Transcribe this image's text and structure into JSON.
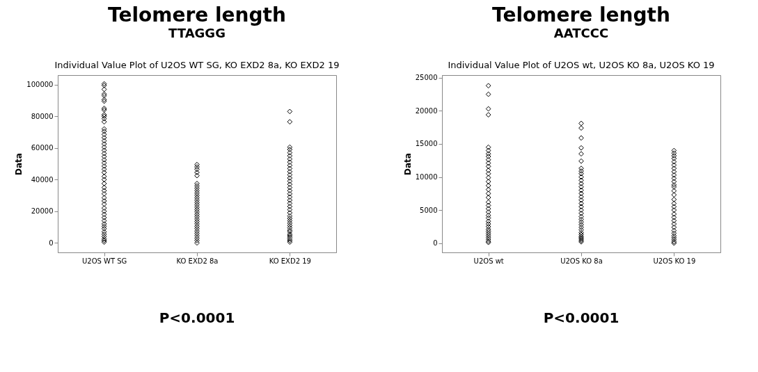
{
  "chart_data": [
    {
      "type": "scatter",
      "title": "Telomere length",
      "subtitle": "TTAGGG",
      "ylabel": "Data",
      "marker": "diamond",
      "grid": false,
      "annotations": [
        "Individual Value Plot of U2OS WT SG, KO EXD2 8a, KO EXD2 19",
        "P<0.0001"
      ],
      "categories": [
        "U2OS WT SG",
        "KO EXD2 8a",
        "KO EXD2 19"
      ],
      "ylim": [
        -6000,
        106000
      ],
      "yticks": [
        0,
        20000,
        40000,
        60000,
        80000,
        100000
      ],
      "series": [
        {
          "color": "#000000",
          "x": [
            "U2OS WT SG",
            "U2OS WT SG",
            "U2OS WT SG",
            "U2OS WT SG",
            "U2OS WT SG",
            "U2OS WT SG",
            "U2OS WT SG",
            "U2OS WT SG",
            "U2OS WT SG",
            "U2OS WT SG",
            "U2OS WT SG",
            "U2OS WT SG",
            "U2OS WT SG",
            "U2OS WT SG",
            "U2OS WT SG",
            "U2OS WT SG",
            "U2OS WT SG",
            "U2OS WT SG",
            "U2OS WT SG",
            "U2OS WT SG",
            "U2OS WT SG",
            "U2OS WT SG",
            "U2OS WT SG",
            "U2OS WT SG",
            "U2OS WT SG",
            "U2OS WT SG",
            "U2OS WT SG",
            "U2OS WT SG",
            "U2OS WT SG",
            "U2OS WT SG",
            "U2OS WT SG",
            "U2OS WT SG",
            "U2OS WT SG",
            "U2OS WT SG",
            "U2OS WT SG",
            "U2OS WT SG",
            "U2OS WT SG",
            "U2OS WT SG",
            "U2OS WT SG",
            "U2OS WT SG",
            "U2OS WT SG",
            "U2OS WT SG",
            "U2OS WT SG",
            "U2OS WT SG",
            "U2OS WT SG",
            "U2OS WT SG",
            "U2OS WT SG",
            "U2OS WT SG",
            "U2OS WT SG",
            "U2OS WT SG",
            "U2OS WT SG"
          ],
          "values": [
            500,
            1500,
            2500,
            4000,
            5500,
            7000,
            9000,
            10500,
            12000,
            14000,
            16000,
            18000,
            20000,
            22000,
            24500,
            26500,
            28500,
            31000,
            33000,
            35000,
            37500,
            40000,
            42000,
            44500,
            46500,
            48500,
            50500,
            52500,
            54500,
            56500,
            58500,
            60500,
            62500,
            64500,
            66500,
            68500,
            70500,
            72000,
            76500,
            78500,
            80000,
            81000,
            84000,
            85000,
            89500,
            90500,
            93000,
            94000,
            97000,
            99500,
            100500
          ]
        },
        {
          "color": "#000000",
          "x": [
            "KO EXD2 8a",
            "KO EXD2 8a",
            "KO EXD2 8a",
            "KO EXD2 8a",
            "KO EXD2 8a",
            "KO EXD2 8a",
            "KO EXD2 8a",
            "KO EXD2 8a",
            "KO EXD2 8a",
            "KO EXD2 8a",
            "KO EXD2 8a",
            "KO EXD2 8a",
            "KO EXD2 8a",
            "KO EXD2 8a",
            "KO EXD2 8a",
            "KO EXD2 8a",
            "KO EXD2 8a",
            "KO EXD2 8a",
            "KO EXD2 8a",
            "KO EXD2 8a",
            "KO EXD2 8a",
            "KO EXD2 8a",
            "KO EXD2 8a",
            "KO EXD2 8a",
            "KO EXD2 8a",
            "KO EXD2 8a",
            "KO EXD2 8a",
            "KO EXD2 8a",
            "KO EXD2 8a",
            "KO EXD2 8a",
            "KO EXD2 8a"
          ],
          "values": [
            0,
            1500,
            3000,
            4500,
            6000,
            7500,
            9000,
            10500,
            12000,
            13500,
            15000,
            16500,
            18000,
            19500,
            21000,
            22500,
            24000,
            25500,
            27000,
            28500,
            30000,
            31500,
            33000,
            34500,
            36000,
            37500,
            42500,
            44500,
            46500,
            48000,
            49500
          ]
        },
        {
          "color": "#000000",
          "x": [
            "KO EXD2 19",
            "KO EXD2 19",
            "KO EXD2 19",
            "KO EXD2 19",
            "KO EXD2 19",
            "KO EXD2 19",
            "KO EXD2 19",
            "KO EXD2 19",
            "KO EXD2 19",
            "KO EXD2 19",
            "KO EXD2 19",
            "KO EXD2 19",
            "KO EXD2 19",
            "KO EXD2 19",
            "KO EXD2 19",
            "KO EXD2 19",
            "KO EXD2 19",
            "KO EXD2 19",
            "KO EXD2 19",
            "KO EXD2 19",
            "KO EXD2 19",
            "KO EXD2 19",
            "KO EXD2 19",
            "KO EXD2 19",
            "KO EXD2 19",
            "KO EXD2 19",
            "KO EXD2 19",
            "KO EXD2 19",
            "KO EXD2 19",
            "KO EXD2 19",
            "KO EXD2 19",
            "KO EXD2 19",
            "KO EXD2 19",
            "KO EXD2 19",
            "KO EXD2 19",
            "KO EXD2 19",
            "KO EXD2 19",
            "KO EXD2 19"
          ],
          "values": [
            500,
            1500,
            2500,
            3500,
            4500,
            5500,
            7000,
            8000,
            9500,
            11000,
            12500,
            14000,
            15500,
            17000,
            19000,
            21000,
            23000,
            25000,
            27000,
            29000,
            31000,
            33000,
            35000,
            37000,
            39000,
            41000,
            43000,
            45000,
            47000,
            49000,
            51000,
            53000,
            55000,
            57000,
            59000,
            60500,
            76500,
            83000
          ]
        }
      ]
    },
    {
      "type": "scatter",
      "title": "Telomere length",
      "subtitle": "AATCCC",
      "ylabel": "Data",
      "marker": "diamond",
      "grid": false,
      "annotations": [
        "Individual Value Plot of U2OS wt, U2OS KO 8a, U2OS KO 19",
        "P<0.0001"
      ],
      "categories": [
        "U2OS wt",
        "U2OS KO 8a",
        "U2OS KO 19"
      ],
      "ylim": [
        -1400,
        25400
      ],
      "yticks": [
        0,
        5000,
        10000,
        15000,
        20000,
        25000
      ],
      "series": [
        {
          "color": "#000000",
          "x": [
            "U2OS wt",
            "U2OS wt",
            "U2OS wt",
            "U2OS wt",
            "U2OS wt",
            "U2OS wt",
            "U2OS wt",
            "U2OS wt",
            "U2OS wt",
            "U2OS wt",
            "U2OS wt",
            "U2OS wt",
            "U2OS wt",
            "U2OS wt",
            "U2OS wt",
            "U2OS wt",
            "U2OS wt",
            "U2OS wt",
            "U2OS wt",
            "U2OS wt",
            "U2OS wt",
            "U2OS wt",
            "U2OS wt",
            "U2OS wt",
            "U2OS wt",
            "U2OS wt",
            "U2OS wt",
            "U2OS wt",
            "U2OS wt",
            "U2OS wt",
            "U2OS wt",
            "U2OS wt",
            "U2OS wt",
            "U2OS wt",
            "U2OS wt",
            "U2OS wt"
          ],
          "values": [
            100,
            300,
            600,
            900,
            1200,
            1500,
            1800,
            2100,
            2500,
            2900,
            3300,
            3800,
            4200,
            4700,
            5200,
            5700,
            6200,
            6900,
            7500,
            8100,
            8700,
            9300,
            9900,
            10500,
            11000,
            11600,
            12100,
            12600,
            13100,
            13500,
            14000,
            14500,
            19400,
            20300,
            22500,
            23800
          ]
        },
        {
          "color": "#000000",
          "x": [
            "U2OS KO 8a",
            "U2OS KO 8a",
            "U2OS KO 8a",
            "U2OS KO 8a",
            "U2OS KO 8a",
            "U2OS KO 8a",
            "U2OS KO 8a",
            "U2OS KO 8a",
            "U2OS KO 8a",
            "U2OS KO 8a",
            "U2OS KO 8a",
            "U2OS KO 8a",
            "U2OS KO 8a",
            "U2OS KO 8a",
            "U2OS KO 8a",
            "U2OS KO 8a",
            "U2OS KO 8a",
            "U2OS KO 8a",
            "U2OS KO 8a",
            "U2OS KO 8a",
            "U2OS KO 8a",
            "U2OS KO 8a",
            "U2OS KO 8a",
            "U2OS KO 8a",
            "U2OS KO 8a",
            "U2OS KO 8a",
            "U2OS KO 8a",
            "U2OS KO 8a",
            "U2OS KO 8a",
            "U2OS KO 8a",
            "U2OS KO 8a",
            "U2OS KO 8a",
            "U2OS KO 8a",
            "U2OS KO 8a"
          ],
          "values": [
            200,
            400,
            600,
            800,
            1000,
            1300,
            1600,
            2000,
            2400,
            2800,
            3200,
            3600,
            4000,
            4500,
            5000,
            5500,
            6000,
            6500,
            7000,
            7500,
            8000,
            8500,
            9000,
            9500,
            10000,
            10500,
            10900,
            11300,
            12400,
            13500,
            14400,
            15900,
            17400,
            18100
          ]
        },
        {
          "color": "#000000",
          "x": [
            "U2OS KO 19",
            "U2OS KO 19",
            "U2OS KO 19",
            "U2OS KO 19",
            "U2OS KO 19",
            "U2OS KO 19",
            "U2OS KO 19",
            "U2OS KO 19",
            "U2OS KO 19",
            "U2OS KO 19",
            "U2OS KO 19",
            "U2OS KO 19",
            "U2OS KO 19",
            "U2OS KO 19",
            "U2OS KO 19",
            "U2OS KO 19",
            "U2OS KO 19",
            "U2OS KO 19",
            "U2OS KO 19",
            "U2OS KO 19",
            "U2OS KO 19",
            "U2OS KO 19",
            "U2OS KO 19",
            "U2OS KO 19",
            "U2OS KO 19",
            "U2OS KO 19",
            "U2OS KO 19",
            "U2OS KO 19",
            "U2OS KO 19",
            "U2OS KO 19",
            "U2OS KO 19"
          ],
          "values": [
            0,
            200,
            500,
            800,
            1100,
            1500,
            1900,
            2400,
            2900,
            3400,
            3900,
            4400,
            5000,
            5500,
            6000,
            6600,
            7300,
            7900,
            8500,
            8800,
            9300,
            9800,
            10300,
            10800,
            11300,
            11800,
            12300,
            12800,
            13200,
            13600,
            14000
          ]
        }
      ]
    }
  ]
}
